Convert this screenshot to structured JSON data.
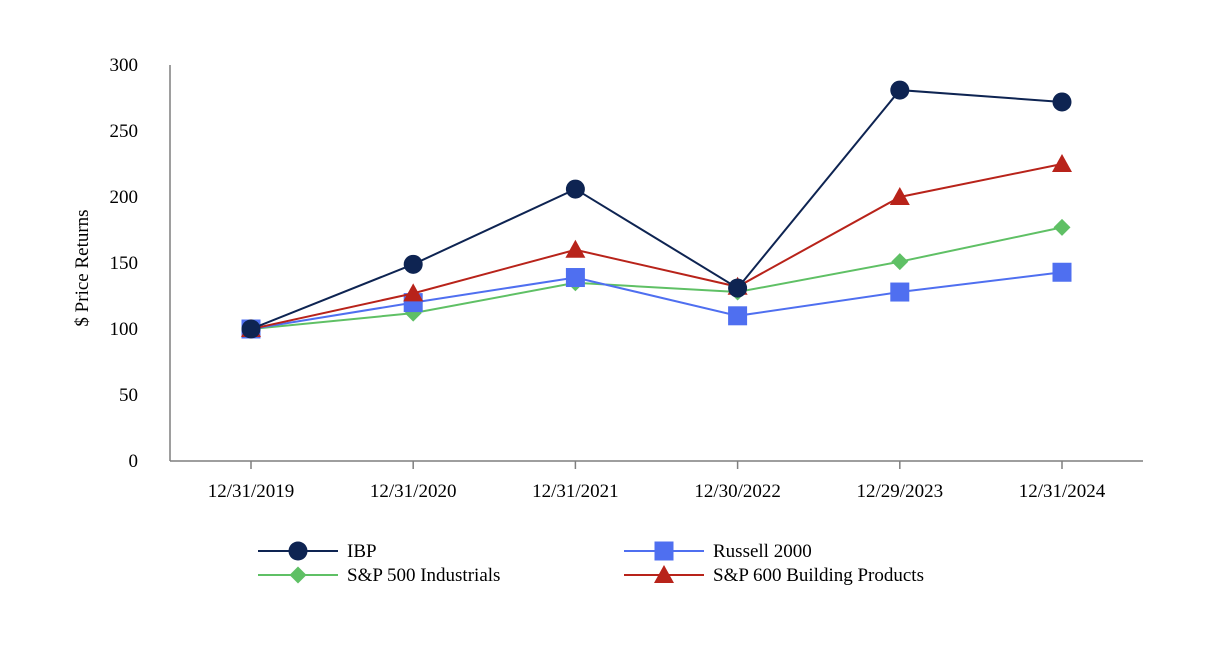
{
  "chart_data": {
    "type": "line",
    "title": "",
    "xlabel": "",
    "ylabel": "$ Price Returns",
    "ylim": [
      0,
      300
    ],
    "yticks": [
      0,
      50,
      100,
      150,
      200,
      250,
      300
    ],
    "categories": [
      "12/31/2019",
      "12/31/2020",
      "12/31/2021",
      "12/30/2022",
      "12/29/2023",
      "12/31/2024"
    ],
    "grid": false,
    "legend_position": "bottom",
    "series": [
      {
        "name": "IBP",
        "color": "#0e2452",
        "marker": "circle",
        "values": [
          100,
          149,
          206,
          131,
          281,
          272
        ]
      },
      {
        "name": "Russell 2000",
        "color": "#4f6ff0",
        "marker": "square",
        "values": [
          100,
          120,
          139,
          110,
          128,
          143
        ]
      },
      {
        "name": "S&P 500 Industrials",
        "color": "#5fc065",
        "marker": "diamond",
        "values": [
          100,
          112,
          135,
          128,
          151,
          177
        ]
      },
      {
        "name": "S&P 600 Building Products",
        "color": "#b8231a",
        "marker": "triangle",
        "values": [
          100,
          127,
          160,
          132,
          200,
          225
        ]
      }
    ]
  }
}
